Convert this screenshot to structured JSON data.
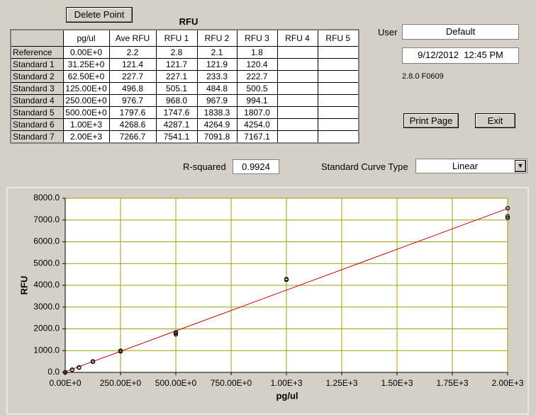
{
  "buttons": {
    "delete_point": "Delete Point",
    "print_page": "Print Page",
    "exit": "Exit"
  },
  "table": {
    "title": "RFU",
    "columns": [
      "pg/ul",
      "Ave RFU",
      "RFU 1",
      "RFU 2",
      "RFU 3",
      "RFU 4",
      "RFU 5"
    ],
    "rows": [
      {
        "label": "Reference",
        "cells": [
          "0.00E+0",
          "2.2",
          "2.8",
          "2.1",
          "1.8"
        ]
      },
      {
        "label": "Standard 1",
        "cells": [
          "31.25E+0",
          "121.4",
          "121.7",
          "121.9",
          "120.4"
        ]
      },
      {
        "label": "Standard 2",
        "cells": [
          "62.50E+0",
          "227.7",
          "227.1",
          "233.3",
          "222.7"
        ]
      },
      {
        "label": "Standard 3",
        "cells": [
          "125.00E+0",
          "496.8",
          "505.1",
          "484.8",
          "500.5"
        ]
      },
      {
        "label": "Standard 4",
        "cells": [
          "250.00E+0",
          "976.7",
          "968.0",
          "967.9",
          "994.1"
        ]
      },
      {
        "label": "Standard 5",
        "cells": [
          "500.00E+0",
          "1797.6",
          "1747.6",
          "1838.3",
          "1807.0"
        ]
      },
      {
        "label": "Standard 6",
        "cells": [
          "1.00E+3",
          "4268.6",
          "4287.1",
          "4264.9",
          "4254.0"
        ]
      },
      {
        "label": "Standard 7",
        "cells": [
          "2.00E+3",
          "7266.7",
          "7541.1",
          "7091.8",
          "7167.1"
        ]
      }
    ]
  },
  "user": {
    "label": "User",
    "value": "Default"
  },
  "datetime": "9/12/2012  12:45 PM",
  "version": "2.8.0 F0609",
  "r_squared": {
    "label": "R-squared",
    "value": "0.9924"
  },
  "curve_type": {
    "label": "Standard Curve Type",
    "value": "Linear"
  },
  "chart_data": {
    "type": "scatter",
    "xlabel": "pg/ul",
    "ylabel": "RFU",
    "x": [
      0,
      31.25,
      62.5,
      125,
      250,
      500,
      1000,
      2000
    ],
    "series": [
      {
        "color": "#000000",
        "values": [
          2.8,
          121.7,
          227.1,
          505.1,
          968.0,
          1747.6,
          4287.1,
          7541.1
        ]
      },
      {
        "color": "#000000",
        "values": [
          2.1,
          121.9,
          233.3,
          484.8,
          967.9,
          1838.3,
          4264.9,
          7091.8
        ]
      },
      {
        "color": "#000000",
        "values": [
          1.8,
          120.4,
          222.7,
          500.5,
          994.1,
          1807.0,
          4254.0,
          7167.1
        ]
      }
    ],
    "fit": {
      "x": [
        0,
        2000
      ],
      "values": [
        30,
        7530
      ],
      "color": "#cc0000"
    },
    "xlim": [
      0,
      2000
    ],
    "ylim": [
      0,
      8000
    ],
    "grid": true,
    "grid_color": "#a0a000",
    "xticks": [
      {
        "value": 0,
        "label": "0.00E+0"
      },
      {
        "value": 250,
        "label": "250.00E+0"
      },
      {
        "value": 500,
        "label": "500.00E+0"
      },
      {
        "value": 750,
        "label": "750.00E+0"
      },
      {
        "value": 1000,
        "label": "1.00E+3"
      },
      {
        "value": 1250,
        "label": "1.25E+3"
      },
      {
        "value": 1500,
        "label": "1.50E+3"
      },
      {
        "value": 1750,
        "label": "1.75E+3"
      },
      {
        "value": 2000,
        "label": "2.00E+3"
      }
    ],
    "yticks": [
      {
        "value": 0,
        "label": "0.0"
      },
      {
        "value": 1000,
        "label": "1000.0"
      },
      {
        "value": 2000,
        "label": "2000.0"
      },
      {
        "value": 3000,
        "label": "3000.0"
      },
      {
        "value": 4000,
        "label": "4000.0"
      },
      {
        "value": 5000,
        "label": "5000.0"
      },
      {
        "value": 6000,
        "label": "6000.0"
      },
      {
        "value": 7000,
        "label": "7000.0"
      },
      {
        "value": 8000,
        "label": "8000.0"
      }
    ]
  }
}
